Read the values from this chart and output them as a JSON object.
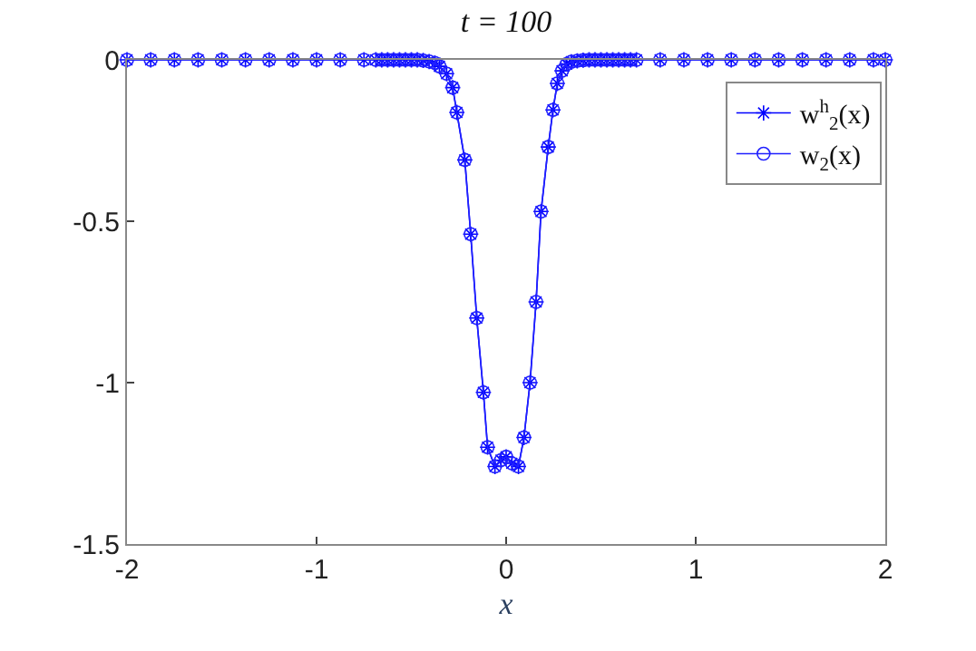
{
  "chart_data": {
    "type": "line",
    "title": "t = 100",
    "xlabel": "x",
    "x": [
      -2,
      -1.875,
      -1.75,
      -1.625,
      -1.5,
      -1.375,
      -1.25,
      -1.125,
      -1,
      -0.875,
      -0.75,
      -0.6875,
      -0.65625,
      -0.625,
      -0.59375,
      -0.5625,
      -0.53125,
      -0.5,
      -0.46875,
      -0.4375,
      -0.40625,
      -0.375,
      -0.352,
      -0.314,
      -0.282,
      -0.26,
      -0.218,
      -0.187,
      -0.155,
      -0.12,
      -0.098,
      -0.059,
      -0.027,
      0,
      0.03,
      0.065,
      0.094,
      0.126,
      0.158,
      0.184,
      0.222,
      0.247,
      0.27,
      0.295,
      0.32,
      0.34375,
      0.375,
      0.40625,
      0.4375,
      0.46875,
      0.5,
      0.53125,
      0.5625,
      0.59375,
      0.625,
      0.65625,
      0.6875,
      0.8125,
      0.9375,
      1.0625,
      1.1875,
      1.3125,
      1.4375,
      1.5625,
      1.6875,
      1.8125,
      1.9375,
      2
    ],
    "series": [
      {
        "name": "w$^{h}$$_{2}$(x)",
        "color": "#0000ff",
        "marker": "cross",
        "values": [
          0,
          0,
          0,
          0,
          0,
          0,
          0,
          0,
          0,
          0,
          0,
          0,
          0,
          0,
          0,
          0,
          0,
          0,
          0,
          -0.002,
          -0.005,
          -0.01,
          -0.02,
          -0.043,
          -0.086,
          -0.163,
          -0.31,
          -0.54,
          -0.8,
          -1.03,
          -1.2,
          -1.26,
          -1.24,
          -1.23,
          -1.25,
          -1.26,
          -1.17,
          -1.0,
          -0.75,
          -0.47,
          -0.27,
          -0.155,
          -0.073,
          -0.034,
          -0.013,
          -0.006,
          -0.003,
          -0.001,
          0,
          0,
          0,
          0,
          0,
          0,
          0,
          0,
          0,
          0,
          0,
          0,
          0,
          0,
          0,
          0,
          0,
          0,
          0,
          0
        ]
      },
      {
        "name": "w$_{2}$(x)",
        "color": "#2020ff",
        "marker": "circle",
        "values": [
          0,
          0,
          0,
          0,
          0,
          0,
          0,
          0,
          0,
          0,
          0,
          0,
          0,
          0,
          0,
          0,
          0,
          0,
          0,
          -0.002,
          -0.005,
          -0.01,
          -0.02,
          -0.043,
          -0.086,
          -0.163,
          -0.31,
          -0.54,
          -0.8,
          -1.03,
          -1.2,
          -1.26,
          -1.24,
          -1.23,
          -1.25,
          -1.26,
          -1.17,
          -1.0,
          -0.75,
          -0.47,
          -0.27,
          -0.155,
          -0.073,
          -0.034,
          -0.013,
          -0.006,
          -0.003,
          -0.001,
          0,
          0,
          0,
          0,
          0,
          0,
          0,
          0,
          0,
          0,
          0,
          0,
          0,
          0,
          0,
          0,
          0,
          0,
          0,
          0
        ]
      }
    ],
    "xlim": [
      -2,
      2
    ],
    "xticks": [
      -2,
      -1,
      0,
      1,
      2
    ],
    "ylim": [
      -1.5,
      0
    ],
    "yticks": [
      -1.5,
      -1,
      -0.5,
      0
    ],
    "legend": "top right",
    "line_style": "solid"
  }
}
